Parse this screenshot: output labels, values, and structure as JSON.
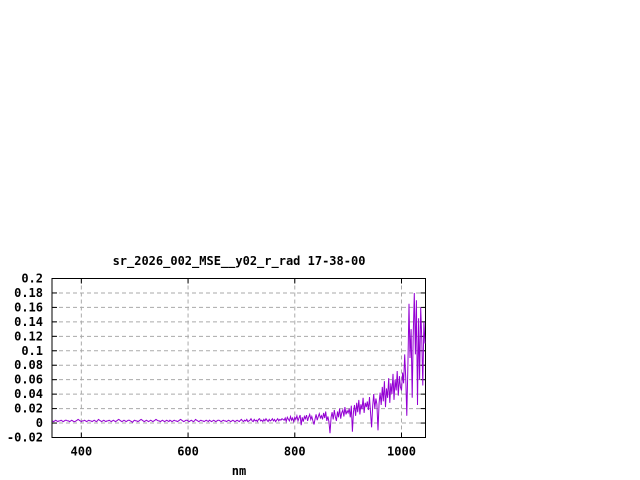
{
  "window": {
    "background": "#ffffff"
  },
  "chart": {
    "title": "sr_2026_002_MSE__y02_r_rad 17-38-00",
    "x_axis_label": "nm"
  },
  "chart_data": {
    "type": "line",
    "title": "sr_2026_002_MSE__y02_r_rad 17-38-00",
    "xlabel": "nm",
    "ylabel": "",
    "xlim": [
      345,
      1045
    ],
    "ylim": [
      -0.02,
      0.2
    ],
    "grid": true,
    "legend": "none",
    "x_ticks": [
      {
        "v": 400,
        "label": "400"
      },
      {
        "v": 600,
        "label": "600"
      },
      {
        "v": 800,
        "label": "800"
      },
      {
        "v": 1000,
        "label": "1000"
      }
    ],
    "y_ticks": [
      {
        "v": -0.02,
        "label": "-0.02"
      },
      {
        "v": 0,
        "label": "0"
      },
      {
        "v": 0.02,
        "label": "0.02"
      },
      {
        "v": 0.04,
        "label": "0.04"
      },
      {
        "v": 0.06,
        "label": "0.06"
      },
      {
        "v": 0.08,
        "label": "0.08"
      },
      {
        "v": 0.1,
        "label": "0.1"
      },
      {
        "v": 0.12,
        "label": "0.12"
      },
      {
        "v": 0.14,
        "label": "0.14"
      },
      {
        "v": 0.16,
        "label": "0.16"
      },
      {
        "v": 0.18,
        "label": "0.18"
      },
      {
        "v": 0.2,
        "label": "0.2"
      }
    ],
    "colors": {
      "line": "#9400d3",
      "grid": "#aaaaaa",
      "axis": "#000000",
      "text": "#000000",
      "background": "#ffffff"
    },
    "series": [
      {
        "name": "sr_2026_002_MSE__y02_r_rad",
        "x_start": 346,
        "x_step": 2,
        "y": [
          0.003,
          0.002,
          0.003,
          0.004,
          0.003,
          0.002,
          0.003,
          0.003,
          0.004,
          0.003,
          0.002,
          0.003,
          0.004,
          0.004,
          0.003,
          0.003,
          0.002,
          0.003,
          0.004,
          0.003,
          0.002,
          0.002,
          0.003,
          0.004,
          0.005,
          0.004,
          0.003,
          0.002,
          0.003,
          0.003,
          0.004,
          0.003,
          0.002,
          0.003,
          0.004,
          0.003,
          0.003,
          0.002,
          0.003,
          0.004,
          0.003,
          0.002,
          0.003,
          0.005,
          0.004,
          0.003,
          0.002,
          0.003,
          0.004,
          0.003,
          0.002,
          0.003,
          0.003,
          0.004,
          0.003,
          0.002,
          0.003,
          0.004,
          0.003,
          0.002,
          0.003,
          0.004,
          0.005,
          0.004,
          0.003,
          0.002,
          0.003,
          0.004,
          0.003,
          0.002,
          0.003,
          0.004,
          0.004,
          0.003,
          0.002,
          0.001,
          0.003,
          0.004,
          0.003,
          0.003,
          0.002,
          0.003,
          0.004,
          0.005,
          0.004,
          0.003,
          0.002,
          0.003,
          0.004,
          0.003,
          0.002,
          0.003,
          0.004,
          0.003,
          0.002,
          0.003,
          0.004,
          0.005,
          0.004,
          0.003,
          0.003,
          0.002,
          0.003,
          0.004,
          0.003,
          0.002,
          0.003,
          0.004,
          0.003,
          0.002,
          0.004,
          0.003,
          0.002,
          0.003,
          0.004,
          0.003,
          0.003,
          0.002,
          0.003,
          0.004,
          0.005,
          0.004,
          0.003,
          0.002,
          0.003,
          0.004,
          0.004,
          0.003,
          0.002,
          0.003,
          0.004,
          0.003,
          0.002,
          0.003,
          0.005,
          0.004,
          0.003,
          0.002,
          0.003,
          0.004,
          0.003,
          0.003,
          0.002,
          0.003,
          0.004,
          0.003,
          0.002,
          0.004,
          0.003,
          0.002,
          0.003,
          0.004,
          0.003,
          0.002,
          0.003,
          0.004,
          0.004,
          0.003,
          0.002,
          0.003,
          0.004,
          0.003,
          0.003,
          0.002,
          0.003,
          0.004,
          0.003,
          0.002,
          0.003,
          0.004,
          0.003,
          0.002,
          0.003,
          0.004,
          0.003,
          0.002,
          0.004,
          0.005,
          0.003,
          0.002,
          0.004,
          0.003,
          0.005,
          0.002,
          0.003,
          0.004,
          0.006,
          0.003,
          0.002,
          0.005,
          0.003,
          0.004,
          0.002,
          0.005,
          0.006,
          0.003,
          0.004,
          0.002,
          0.005,
          0.003,
          0.006,
          0.004,
          0.002,
          0.005,
          0.003,
          0.004,
          0.006,
          0.003,
          0.005,
          0.002,
          0.004,
          0.006,
          0.003,
          0.005,
          0.004,
          0.006,
          0.005,
          0.004,
          0.007,
          0.002,
          0.008,
          0.005,
          0.003,
          0.009,
          0.004,
          0.007,
          0.002,
          0.008,
          0.005,
          0.01,
          0.003,
          0.007,
          0.011,
          -0.003,
          0.008,
          0.002,
          0.009,
          0.006,
          0.011,
          0.003,
          0.008,
          0.012,
          0.005,
          0.009,
          0.003,
          -0.002,
          0.006,
          0.012,
          0.004,
          0.009,
          0.013,
          0.007,
          0.01,
          0.005,
          0.014,
          0.007,
          0.016,
          0.003,
          0.009,
          0.002,
          -0.014,
          0.008,
          0.015,
          0.005,
          0.018,
          0.009,
          0.003,
          0.016,
          0.008,
          0.02,
          0.006,
          0.014,
          0.018,
          0.009,
          0.022,
          0.012,
          0.017,
          0.014,
          0.02,
          0.008,
          0.024,
          -0.012,
          0.016,
          0.025,
          0.01,
          0.028,
          0.015,
          0.032,
          0.012,
          0.026,
          0.019,
          0.035,
          0.014,
          0.028,
          0.022,
          0.03,
          0.018,
          0.036,
          0.015,
          -0.006,
          0.024,
          0.04,
          0.02,
          0.034,
          0.026,
          -0.01,
          0.028,
          0.042,
          0.025,
          0.05,
          0.03,
          0.058,
          0.022,
          0.048,
          0.035,
          0.062,
          0.028,
          0.055,
          0.04,
          0.068,
          0.032,
          0.06,
          0.045,
          0.072,
          0.038,
          0.065,
          0.05,
          0.045,
          0.07,
          0.055,
          0.095,
          0.06,
          0.01,
          0.08,
          0.165,
          0.09,
          0.13,
          0.035,
          0.12,
          0.18,
          0.095,
          0.17,
          0.025,
          0.145,
          0.06,
          0.16,
          0.115,
          0.052,
          0.14,
          0.11
        ]
      }
    ]
  }
}
